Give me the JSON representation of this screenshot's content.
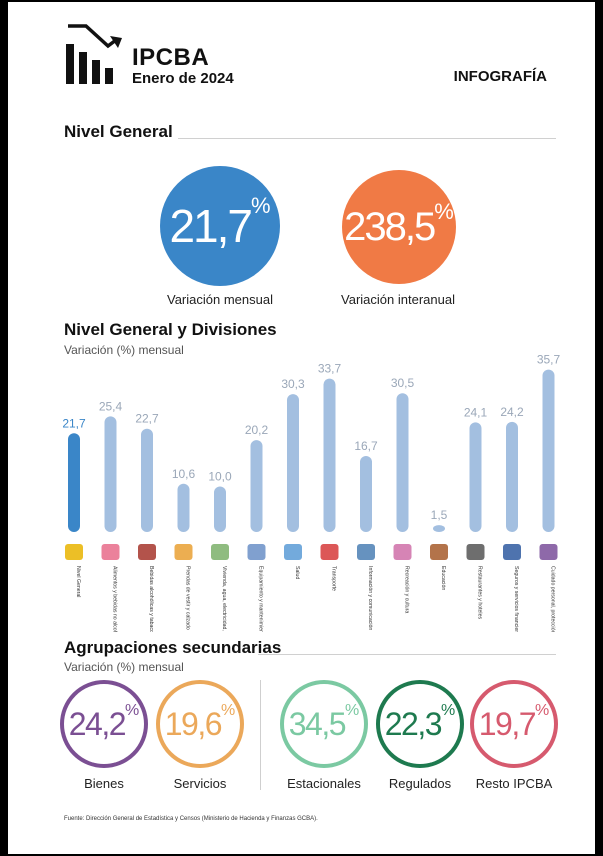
{
  "header": {
    "brand": "IPCBA",
    "date": "Enero de 2024",
    "label": "INFOGRAFÍA",
    "logo_icon": "bar-chart-down-arrow-icon"
  },
  "nivel_general": {
    "title": "Nivel General",
    "mensual": {
      "value": "21,7",
      "unit": "%",
      "caption": "Variación mensual",
      "color": "#3a86c8"
    },
    "interanual": {
      "value": "238,5",
      "unit": "%",
      "caption": "Variación interanual",
      "color": "#f07a45"
    }
  },
  "divisiones": {
    "title": "Nivel General y Divisiones",
    "subtitle": "Variación (%) mensual"
  },
  "chart_data": {
    "type": "bar",
    "title": "Nivel General y Divisiones",
    "ylabel": "Variación (%) mensual",
    "ylim": [
      0,
      36
    ],
    "categories": [
      "Nivel General",
      "Alimentos y bebidas no alcohólicas",
      "Bebidas alcohólicas y tabaco",
      "Prendas de vestir y calzado",
      "Vivienda, agua, electricidad, gas y otros combustibles",
      "Equipamiento y mantenimiento del hogar",
      "Salud",
      "Transporte",
      "Información y comunicación",
      "Recreación y cultura",
      "Educación",
      "Restaurantes y hoteles",
      "Seguros y servicios financieros",
      "Cuidado personal, protección social y otros productos"
    ],
    "values": [
      21.7,
      25.4,
      22.7,
      10.6,
      10.0,
      20.2,
      30.3,
      33.7,
      16.7,
      30.5,
      1.5,
      24.1,
      24.2,
      35.7
    ],
    "value_labels": [
      "21,7",
      "25,4",
      "22,7",
      "10,6",
      "10,0",
      "20,2",
      "30,3",
      "33,7",
      "16,7",
      "30,5",
      "1,5",
      "24,1",
      "24,2",
      "35,7"
    ],
    "colors": {
      "highlight": "#3a86c8",
      "default": "#a3bfe0",
      "highlight_label": "#3a86c8",
      "default_label": "#9aa7b8"
    },
    "icons": [
      "ipc-logo-icon",
      "food-basket-icon",
      "bottle-icon",
      "clothes-icon",
      "house-icon",
      "appliance-icon",
      "doctor-icon",
      "car-icon",
      "computer-icon",
      "art-icon",
      "school-icon",
      "restaurant-icon",
      "bank-icon",
      "personal-care-icon"
    ]
  },
  "agrupaciones": {
    "title": "Agrupaciones secundarias",
    "subtitle": "Variación (%) mensual",
    "items": [
      {
        "value": "24,2",
        "unit": "%",
        "caption": "Bienes",
        "color": "#7b4f93"
      },
      {
        "value": "19,6",
        "unit": "%",
        "caption": "Servicios",
        "color": "#eba85a"
      },
      {
        "value": "34,5",
        "unit": "%",
        "caption": "Estacionales",
        "color": "#7bc9a2"
      },
      {
        "value": "22,3",
        "unit": "%",
        "caption": "Regulados",
        "color": "#1e7a4f"
      },
      {
        "value": "19,7",
        "unit": "%",
        "caption": "Resto IPCBA",
        "color": "#d65a6e"
      }
    ]
  },
  "footnote": "Fuente: Dirección General de Estadística y Censos (Ministerio de Hacienda y Finanzas GCBA)."
}
